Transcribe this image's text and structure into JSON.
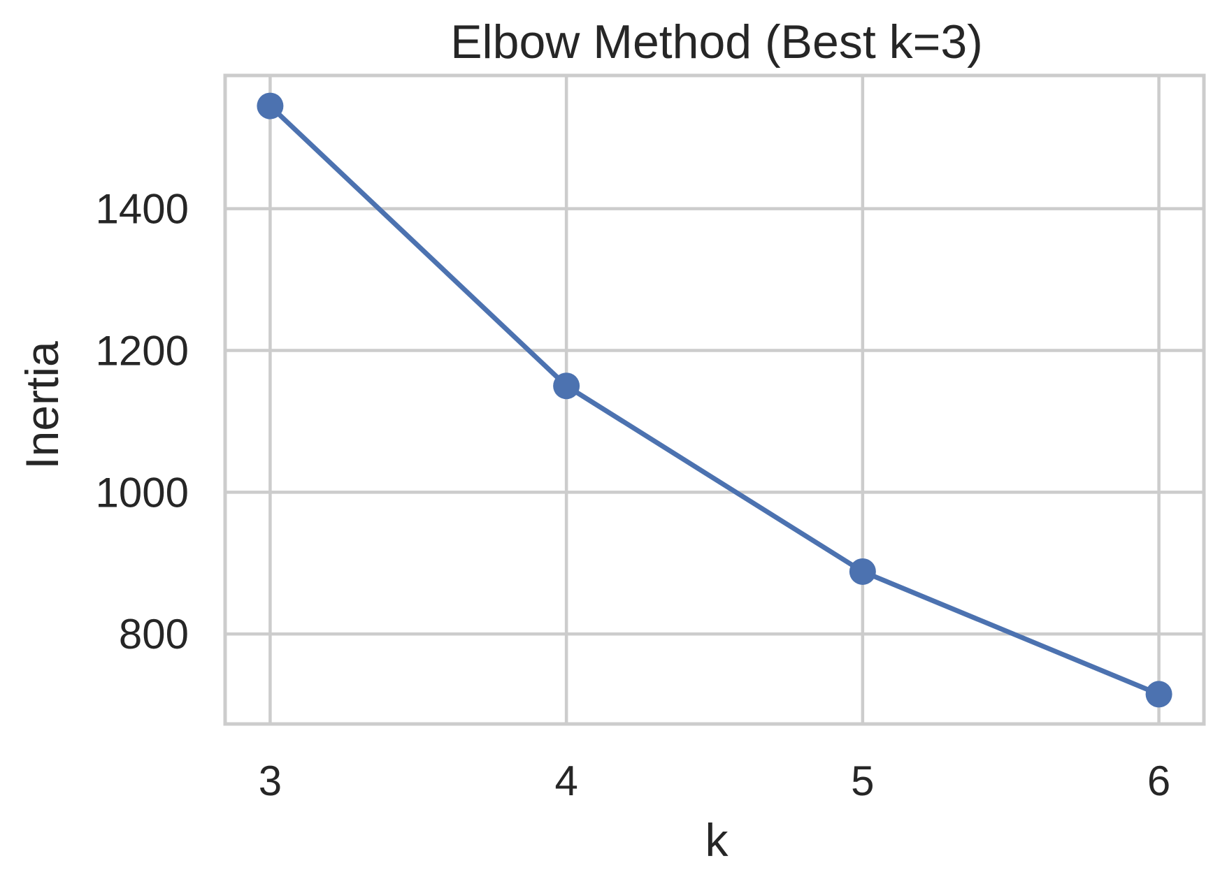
{
  "chart_data": {
    "type": "line",
    "title": "Elbow Method (Best k=3)",
    "xlabel": "k",
    "ylabel": "Inertia",
    "x": [
      3,
      4,
      5,
      6
    ],
    "series": [
      {
        "values": [
          1545,
          1150,
          888,
          715
        ],
        "color": "#4c72b0",
        "marker": "circle"
      }
    ],
    "xticks": [
      3,
      4,
      5,
      6
    ],
    "yticks": [
      800,
      1000,
      1200,
      1400
    ],
    "xtick_labels": [
      "3",
      "4",
      "5",
      "6"
    ],
    "ytick_labels": [
      "800",
      "1000",
      "1200",
      "1400"
    ],
    "xlim": [
      2.848,
      6.152
    ],
    "ylim": [
      673,
      1588
    ],
    "grid": true,
    "legend": "none",
    "frame_color": "#cccccc",
    "grid_color": "#cccccc",
    "text_color": "#262626"
  }
}
